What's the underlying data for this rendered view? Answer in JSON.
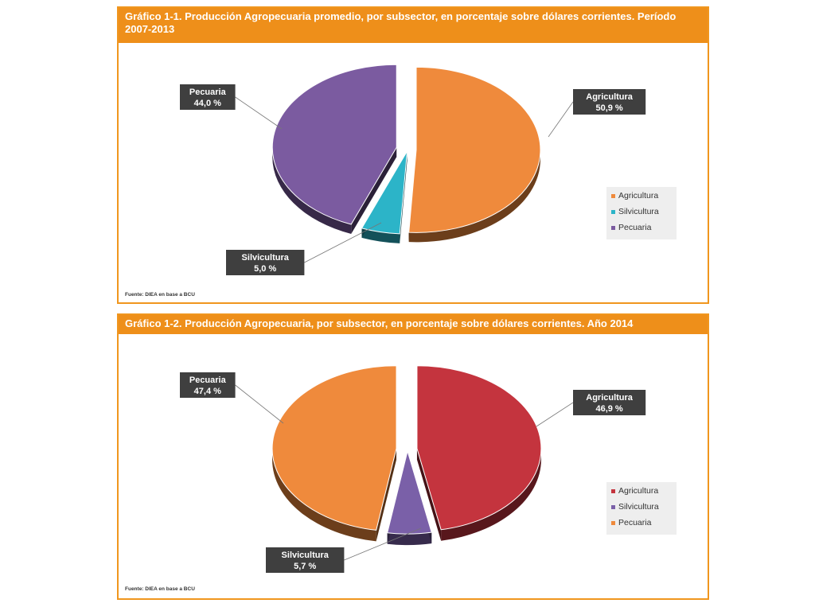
{
  "charts": [
    {
      "title": "Gráfico 1-1. Producción Agropecuaria promedio, por subsector, en porcentaje sobre dólares corrientes. Período 2007-2013",
      "source": "Fuente: DIEA en base a BCU",
      "chart_data": {
        "type": "pie",
        "categories": [
          "Agricultura",
          "Silvicultura",
          "Pecuaria"
        ],
        "values": [
          50.9,
          5.0,
          44.0
        ],
        "value_labels": [
          "50,9 %",
          "5,0 %",
          "44,0 %"
        ],
        "colors": [
          "#ef8a3c",
          "#2cb4c8",
          "#7b5ba0"
        ],
        "legend": [
          "Agricultura",
          "Silvicultura",
          "Pecuaria"
        ],
        "legend_position": "right",
        "exploded": true,
        "three_d": true
      }
    },
    {
      "title": "Gráfico 1-2. Producción Agropecuaria, por subsector, en porcentaje sobre dólares corrientes. Año 2014",
      "source": "Fuente: DIEA en base a BCU",
      "chart_data": {
        "type": "pie",
        "categories": [
          "Agricultura",
          "Silvicultura",
          "Pecuaria"
        ],
        "values": [
          46.9,
          5.7,
          47.4
        ],
        "value_labels": [
          "46,9 %",
          "5,7 %",
          "47,4 %"
        ],
        "colors": [
          "#c4343e",
          "#7a60a8",
          "#ef8a3c"
        ],
        "legend": [
          "Agricultura",
          "Silvicultura",
          "Pecuaria"
        ],
        "legend_position": "right",
        "exploded": true,
        "three_d": true
      }
    }
  ]
}
